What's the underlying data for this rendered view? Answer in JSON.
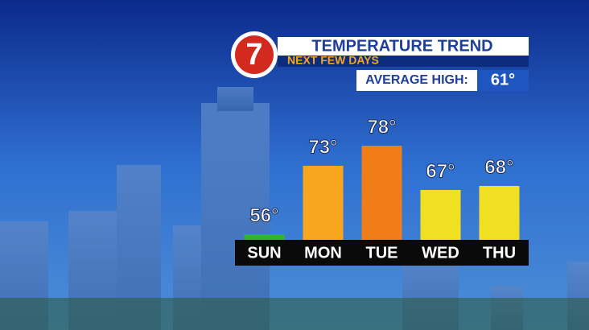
{
  "chart_data": {
    "type": "bar",
    "logo": "7",
    "title": "TEMPERATURE TREND",
    "subtitle": "NEXT FEW DAYS",
    "annotation": {
      "label": "AVERAGE HIGH:",
      "value": "61°"
    },
    "categories": [
      "SUN",
      "MON",
      "TUE",
      "WED",
      "THU"
    ],
    "values": [
      56,
      73,
      78,
      67,
      68
    ],
    "value_labels": [
      "56°",
      "73°",
      "78°",
      "67°",
      "68°"
    ],
    "colors": [
      "#2fb52f",
      "#f8a61e",
      "#f07d18",
      "#f1e021",
      "#f1e021"
    ]
  }
}
